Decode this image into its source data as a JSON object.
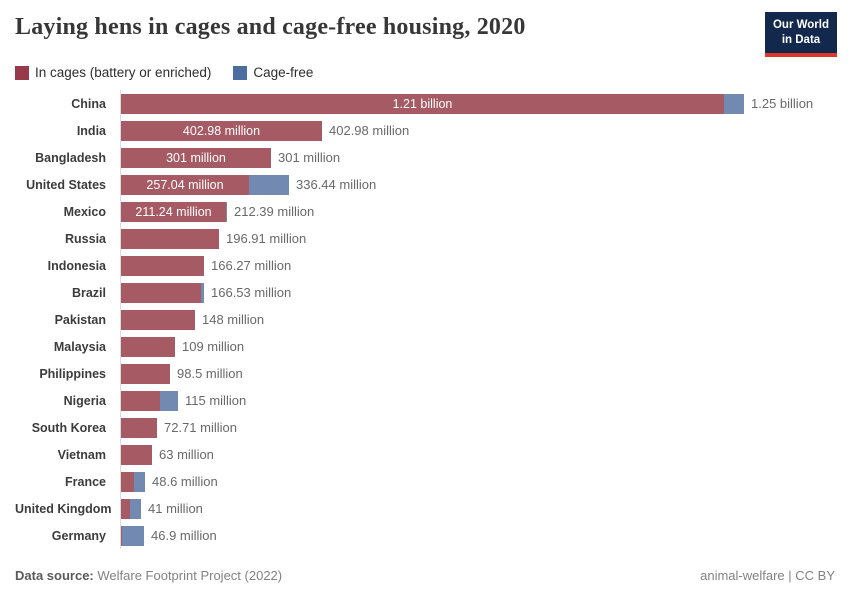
{
  "header": {
    "title": "Laying hens in cages and cage-free housing, 2020",
    "logo": {
      "line1": "Our World",
      "line2": "in Data",
      "bg": "#12294d",
      "accent": "#d93a2d"
    }
  },
  "legend": [
    {
      "label": "In cages (battery or enriched)",
      "color": "#963a4c"
    },
    {
      "label": "Cage-free",
      "color": "#4d6d9f"
    }
  ],
  "colors": {
    "cages_bar": "#a65b64",
    "cage_free_bar": "#7289b2",
    "axis_line": "#dcdcdc"
  },
  "chart_data": {
    "type": "bar",
    "orientation": "horizontal",
    "stacked": true,
    "title": "Laying hens in cages and cage-free housing, 2020",
    "unit": "hens (millions)",
    "xlim_millions": [
      0,
      1450
    ],
    "grid": false,
    "legend_position": "top-left",
    "categories": [
      "China",
      "India",
      "Bangladesh",
      "United States",
      "Mexico",
      "Russia",
      "Indonesia",
      "Brazil",
      "Pakistan",
      "Malaysia",
      "Philippines",
      "Nigeria",
      "South Korea",
      "Vietnam",
      "France",
      "United Kingdom",
      "Germany"
    ],
    "series": [
      {
        "name": "In cages (battery or enriched)",
        "values_millions": [
          1210,
          402.98,
          301,
          257.04,
          211.24,
          196.91,
          166.27,
          160.5,
          148,
          109,
          98.5,
          78,
          72.71,
          63,
          26,
          18,
          2.5
        ]
      },
      {
        "name": "Cage-free",
        "values_millions": [
          40,
          0,
          0,
          79.4,
          1.15,
          0,
          0,
          6.03,
          0,
          0,
          0,
          37,
          0,
          0,
          22.6,
          23,
          44.4
        ]
      }
    ],
    "inside_labels": [
      "1.21 billion",
      "402.98 million",
      "301 million",
      "257.04 million",
      "211.24 million",
      null,
      null,
      null,
      null,
      null,
      null,
      null,
      null,
      null,
      null,
      null,
      null
    ],
    "total_labels": [
      "1.25 billion",
      "402.98 million",
      "301 million",
      "336.44 million",
      "212.39 million",
      "196.91 million",
      "166.27 million",
      "166.53 million",
      "148 million",
      "109 million",
      "98.5 million",
      "115 million",
      "72.71 million",
      "63 million",
      "48.6 million",
      "41 million",
      "46.9 million"
    ]
  },
  "footer": {
    "source_label": "Data source:",
    "source_value": "Welfare Footprint Project (2022)",
    "credit": "animal-welfare | CC BY"
  }
}
